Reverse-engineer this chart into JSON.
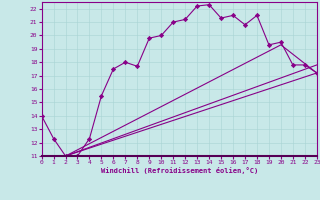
{
  "xlabel": "Windchill (Refroidissement éolien,°C)",
  "bg_color": "#c8e8e8",
  "line_color": "#880088",
  "xmin": 0,
  "xmax": 23,
  "ymin": 11,
  "ymax": 22.5,
  "yticks": [
    11,
    12,
    13,
    14,
    15,
    16,
    17,
    18,
    19,
    20,
    21,
    22
  ],
  "xticks": [
    0,
    1,
    2,
    3,
    4,
    5,
    6,
    7,
    8,
    9,
    10,
    11,
    12,
    13,
    14,
    15,
    16,
    17,
    18,
    19,
    20,
    21,
    22,
    23
  ],
  "curves": [
    {
      "x": [
        0,
        1,
        2,
        3,
        4,
        5,
        6,
        7,
        8,
        9,
        10,
        11,
        12,
        13,
        14,
        15,
        16,
        17,
        18,
        19,
        20,
        21,
        22,
        23
      ],
      "y": [
        14,
        12.3,
        11,
        11,
        12.3,
        15.5,
        17.5,
        18,
        17.7,
        19.8,
        20,
        21,
        21.2,
        22.2,
        22.3,
        21.3,
        21.5,
        20.8,
        21.5,
        19.3,
        19.5,
        17.8,
        17.8,
        17.2
      ],
      "markers": true
    },
    {
      "x": [
        2,
        3,
        23
      ],
      "y": [
        11,
        11,
        17.2
      ],
      "markers": false
    },
    {
      "x": [
        2,
        3,
        23
      ],
      "y": [
        11,
        11,
        17.2
      ],
      "markers": false
    },
    {
      "x": [
        2,
        3,
        20,
        23
      ],
      "y": [
        11,
        11,
        19.3,
        17.2
      ],
      "markers": false
    }
  ],
  "straight_lines": [
    {
      "x": [
        2,
        23
      ],
      "y": [
        11,
        17.2
      ]
    },
    {
      "x": [
        2,
        23
      ],
      "y": [
        11,
        17.8
      ]
    },
    {
      "x": [
        2,
        20,
        23
      ],
      "y": [
        11,
        19.3,
        17.2
      ]
    }
  ]
}
